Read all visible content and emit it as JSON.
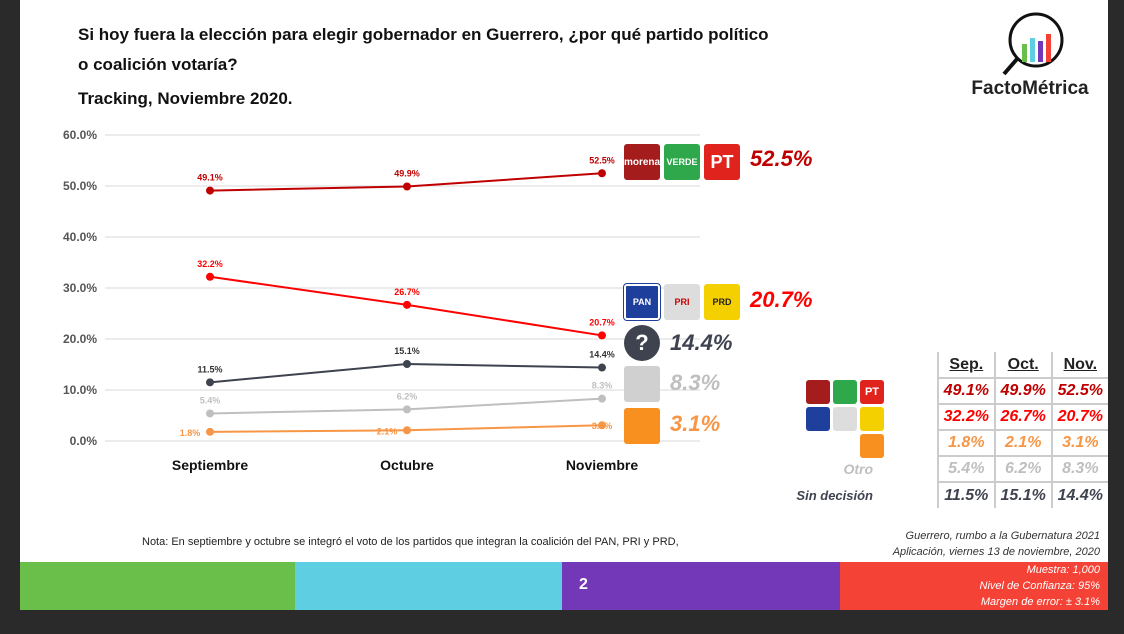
{
  "header": {
    "title_line1": "Si hoy fuera la elección para elegir gobernador en Guerrero, ¿por qué partido político",
    "title_line2": "o coalición votaría?",
    "subtitle": "Tracking, Noviembre 2020.",
    "brand": "FactoMétrica"
  },
  "chart_data": {
    "type": "line",
    "categories": [
      "Septiembre",
      "Octubre",
      "Noviembre"
    ],
    "ylim": [
      0,
      60
    ],
    "yticks": [
      "0.0%",
      "10.0%",
      "20.0%",
      "30.0%",
      "40.0%",
      "50.0%",
      "60.0%"
    ],
    "grid": true,
    "series": [
      {
        "key": "morena",
        "values": [
          49.1,
          49.9,
          52.5
        ],
        "labels": [
          "49.1%",
          "49.9%",
          "52.5%"
        ],
        "color": "#c00000"
      },
      {
        "key": "pan",
        "values": [
          32.2,
          26.7,
          20.7
        ],
        "labels": [
          "32.2%",
          "26.7%",
          "20.7%"
        ],
        "color": "#ff0000"
      },
      {
        "key": "sin",
        "values": [
          11.5,
          15.1,
          14.4
        ],
        "labels": [
          "11.5%",
          "15.1%",
          "14.4%"
        ],
        "color": "#3f4350"
      },
      {
        "key": "otro",
        "values": [
          5.4,
          6.2,
          8.3
        ],
        "labels": [
          "5.4%",
          "6.2%",
          "8.3%"
        ],
        "color": "#bfbfbf"
      },
      {
        "key": "mc",
        "values": [
          1.8,
          2.1,
          3.1
        ],
        "labels": [
          "1.8%",
          "2.1%",
          "3.1%"
        ],
        "color": "#f79646"
      }
    ]
  },
  "end_labels": {
    "morena": "52.5%",
    "pan": "20.7%",
    "sin": "14.4%",
    "otro": "8.3%",
    "mc": "3.1%"
  },
  "logos": {
    "morena": "morena",
    "verde": "VERDE",
    "pt": "PT",
    "pan": "PAN",
    "pri": "PRI",
    "prd": "PRD"
  },
  "table": {
    "headers": [
      "Sep.",
      "Oct.",
      "Nov."
    ],
    "rows": [
      {
        "label": "",
        "values": [
          "49.1%",
          "49.9%",
          "52.5%"
        ],
        "color": "#c00000"
      },
      {
        "label": "",
        "values": [
          "32.2%",
          "26.7%",
          "20.7%"
        ],
        "color": "#ff0000"
      },
      {
        "label": "",
        "values": [
          "1.8%",
          "2.1%",
          "3.1%"
        ],
        "color": "#f79646"
      },
      {
        "label": "Otro",
        "values": [
          "5.4%",
          "6.2%",
          "8.3%"
        ],
        "color": "#bfbfbf"
      },
      {
        "label": "Sin decisión",
        "values": [
          "11.5%",
          "15.1%",
          "14.4%"
        ],
        "color": "#3f4350"
      }
    ]
  },
  "footer": {
    "note": "Nota: En septiembre y octubre se integró el voto de los partidos que integran la coalición del PAN, PRI y PRD,",
    "source1": "Guerrero, rumbo a la Gubernatura 2021",
    "source2": "Aplicación, viernes 13 de noviembre, 2020",
    "page": "2",
    "muestra": "Muestra:  1,000",
    "confianza": "Nivel de Confianza: 95%",
    "error": "Margen de error: ± 3.1%"
  },
  "colors": {
    "green": "#6abf4b",
    "cyan": "#5ecfe3",
    "purple": "#7338b8",
    "red": "#f54236"
  }
}
